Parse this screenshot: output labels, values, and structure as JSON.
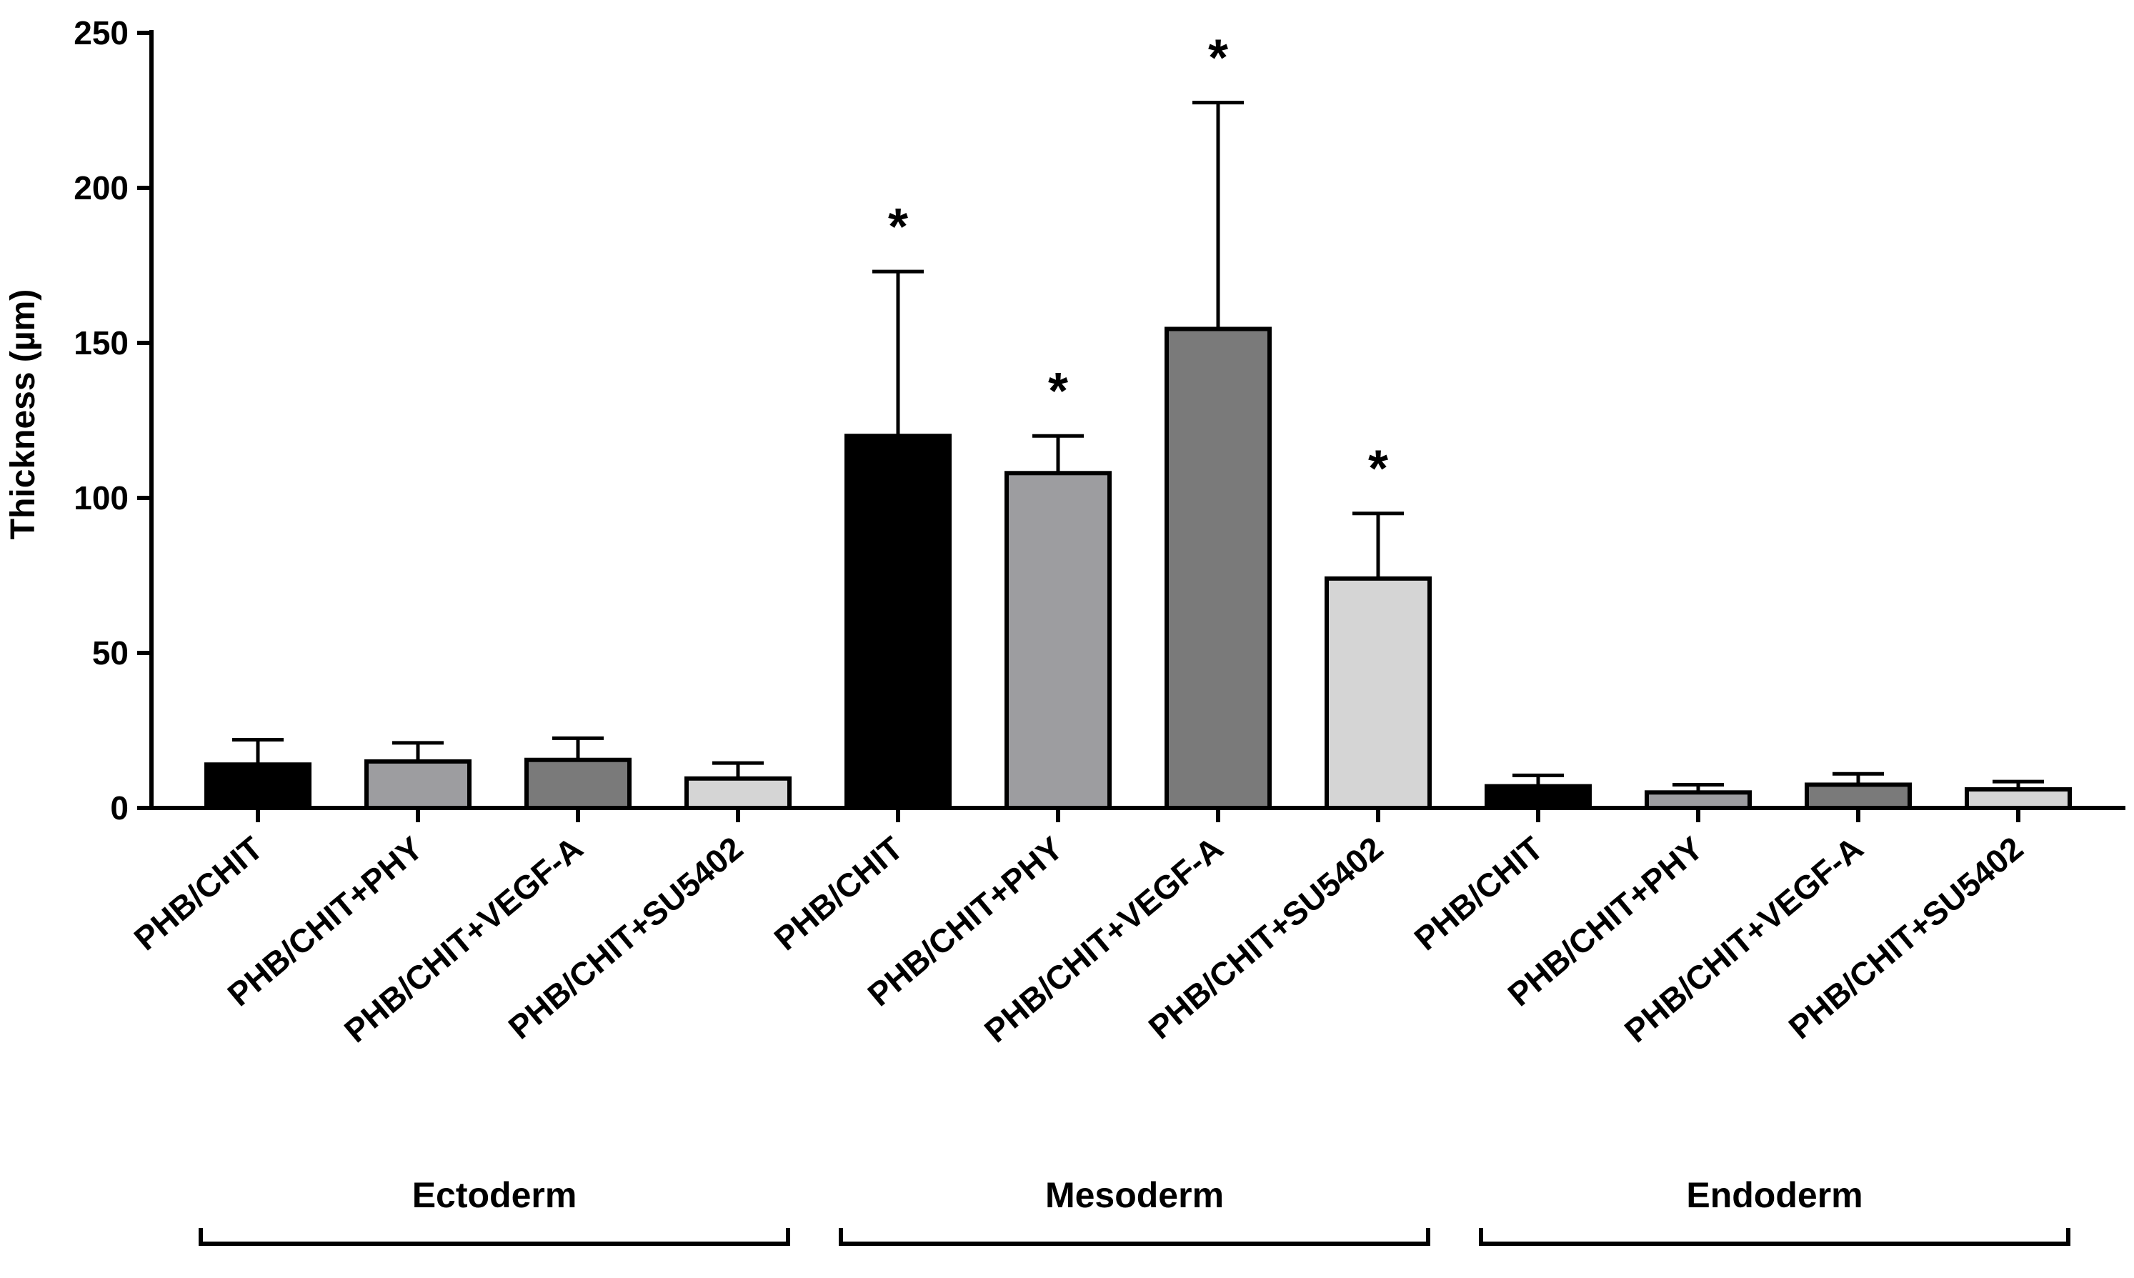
{
  "chart_data": {
    "type": "bar",
    "title": "",
    "xlabel": "",
    "ylabel": "Thickness (µm)",
    "ylim": [
      0,
      250
    ],
    "yticks": [
      0,
      50,
      100,
      150,
      200,
      250
    ],
    "grid": false,
    "legend": "none",
    "groups": [
      "Ectoderm",
      "Mesoderm",
      "Endoderm"
    ],
    "categories": [
      "PHB/CHIT",
      "PHB/CHIT+PHY",
      "PHB/CHIT+VEGF-A",
      "PHB/CHIT+SU5402"
    ],
    "colors": [
      "#000000",
      "#9d9da0",
      "#7a7a7a",
      "#d5d5d5"
    ],
    "significance_mark": "*",
    "bars": [
      {
        "group": "Ectoderm",
        "label": "PHB/CHIT",
        "value": 14,
        "error": 8,
        "significant": false
      },
      {
        "group": "Ectoderm",
        "label": "PHB/CHIT+PHY",
        "value": 15,
        "error": 6,
        "significant": false
      },
      {
        "group": "Ectoderm",
        "label": "PHB/CHIT+VEGF-A",
        "value": 15.5,
        "error": 7,
        "significant": false
      },
      {
        "group": "Ectoderm",
        "label": "PHB/CHIT+SU5402",
        "value": 9.5,
        "error": 5,
        "significant": false
      },
      {
        "group": "Mesoderm",
        "label": "PHB/CHIT",
        "value": 120,
        "error": 53,
        "significant": true
      },
      {
        "group": "Mesoderm",
        "label": "PHB/CHIT+PHY",
        "value": 108,
        "error": 12,
        "significant": true
      },
      {
        "group": "Mesoderm",
        "label": "PHB/CHIT+VEGF-A",
        "value": 154.5,
        "error": 73,
        "significant": true
      },
      {
        "group": "Mesoderm",
        "label": "PHB/CHIT+SU5402",
        "value": 74,
        "error": 21,
        "significant": true
      },
      {
        "group": "Endoderm",
        "label": "PHB/CHIT",
        "value": 7,
        "error": 3.5,
        "significant": false
      },
      {
        "group": "Endoderm",
        "label": "PHB/CHIT+PHY",
        "value": 5,
        "error": 2.5,
        "significant": false
      },
      {
        "group": "Endoderm",
        "label": "PHB/CHIT+VEGF-A",
        "value": 7.5,
        "error": 3.5,
        "significant": false
      },
      {
        "group": "Endoderm",
        "label": "PHB/CHIT+SU5402",
        "value": 6,
        "error": 2.5,
        "significant": false
      }
    ]
  }
}
